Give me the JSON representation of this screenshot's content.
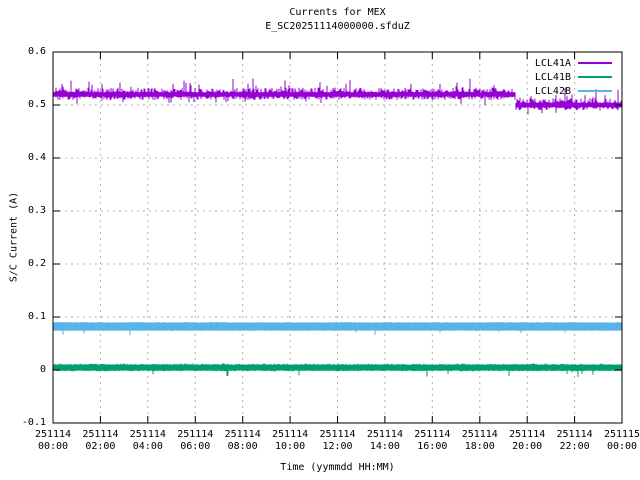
{
  "figure": {
    "title": "Currents for MEX",
    "subtitle": "E_SC20251114000000.sfduZ"
  },
  "chart_data": {
    "type": "line",
    "title": "Currents for MEX",
    "subtitle": "E_SC20251114000000.sfduZ",
    "xlabel": "Time (yymmdd HH:MM)",
    "ylabel": "S/C Current (A)",
    "ylim": [
      -0.1,
      0.6
    ],
    "x_hours_range": [
      0,
      24
    ],
    "grid": true,
    "grid_style": "dashed",
    "grid_color": "#b0b0b0",
    "axis_color": "#000000",
    "background_color": "#ffffff",
    "legend_position": "top-right-inside",
    "y_ticks": [
      {
        "value": -0.1,
        "label": "-0.1"
      },
      {
        "value": 0,
        "label": "0"
      },
      {
        "value": 0.1,
        "label": "0.1"
      },
      {
        "value": 0.2,
        "label": "0.2"
      },
      {
        "value": 0.3,
        "label": "0.3"
      },
      {
        "value": 0.4,
        "label": "0.4"
      },
      {
        "value": 0.5,
        "label": "0.5"
      },
      {
        "value": 0.6,
        "label": "0.6"
      }
    ],
    "x_ticks": [
      {
        "hour": 0,
        "date": "251114",
        "time": "00:00"
      },
      {
        "hour": 2,
        "date": "251114",
        "time": "02:00"
      },
      {
        "hour": 4,
        "date": "251114",
        "time": "04:00"
      },
      {
        "hour": 6,
        "date": "251114",
        "time": "06:00"
      },
      {
        "hour": 8,
        "date": "251114",
        "time": "08:00"
      },
      {
        "hour": 10,
        "date": "251114",
        "time": "10:00"
      },
      {
        "hour": 12,
        "date": "251114",
        "time": "12:00"
      },
      {
        "hour": 14,
        "date": "251114",
        "time": "14:00"
      },
      {
        "hour": 16,
        "date": "251114",
        "time": "16:00"
      },
      {
        "hour": 18,
        "date": "251114",
        "time": "18:00"
      },
      {
        "hour": 20,
        "date": "251114",
        "time": "20:00"
      },
      {
        "hour": 22,
        "date": "251114",
        "time": "22:00"
      },
      {
        "hour": 24,
        "date": "251115",
        "time": "00:00"
      }
    ],
    "series": [
      {
        "name": "LCL41A",
        "color": "#9400d3",
        "segments": [
          {
            "from_h": 0,
            "to_h": 19.5,
            "value": 0.52
          },
          {
            "from_h": 19.5,
            "to_h": 24,
            "value": 0.5
          }
        ],
        "noise": {
          "band_up": 0.004,
          "band_down": 0.004,
          "jitter": 0.009,
          "spike_prob": 0.1,
          "spike_up": 0.022,
          "spike_down": 0.012
        }
      },
      {
        "name": "LCL41B",
        "color": "#009e73",
        "segments": [
          {
            "from_h": 0,
            "to_h": 24,
            "value": 0.003
          }
        ],
        "noise": {
          "band_up": 0.007,
          "band_down": 0.004,
          "jitter": 0.002,
          "spike_prob": 0.05,
          "spike_up": 0.002,
          "spike_down": 0.013
        }
      },
      {
        "name": "LCL42B",
        "color": "#56b4e9",
        "segments": [
          {
            "from_h": 0,
            "to_h": 24,
            "value": 0.082
          }
        ],
        "noise": {
          "band_up": 0.0075,
          "band_down": 0.0075,
          "jitter": 0.001,
          "spike_prob": 0.03,
          "spike_up": 0.001,
          "spike_down": 0.009
        }
      }
    ]
  }
}
